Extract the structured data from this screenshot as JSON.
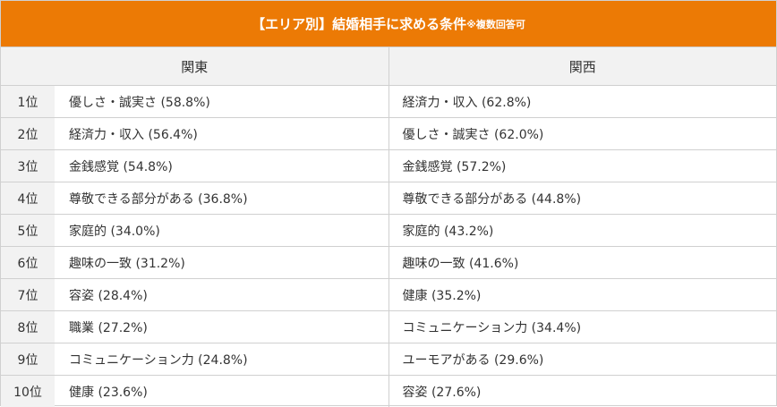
{
  "title": {
    "main": "【エリア別】結婚相手に求める条件",
    "note": "※複数回答可"
  },
  "headers": {
    "kanto": "関東",
    "kansai": "関西"
  },
  "rows": [
    {
      "rank": "1位",
      "kanto": "優しさ・誠実さ (58.8%)",
      "kansai": "経済力・収入 (62.8%)"
    },
    {
      "rank": "2位",
      "kanto": "経済力・収入 (56.4%)",
      "kansai": "優しさ・誠実さ (62.0%)"
    },
    {
      "rank": "3位",
      "kanto": "金銭感覚 (54.8%)",
      "kansai": "金銭感覚 (57.2%)"
    },
    {
      "rank": "4位",
      "kanto": "尊敬できる部分がある (36.8%)",
      "kansai": "尊敬できる部分がある (44.8%)"
    },
    {
      "rank": "5位",
      "kanto": "家庭的 (34.0%)",
      "kansai": "家庭的 (43.2%)"
    },
    {
      "rank": "6位",
      "kanto": "趣味の一致 (31.2%)",
      "kansai": "趣味の一致 (41.6%)"
    },
    {
      "rank": "7位",
      "kanto": "容姿 (28.4%)",
      "kansai": "健康 (35.2%)"
    },
    {
      "rank": "8位",
      "kanto": "職業 (27.2%)",
      "kansai": "コミュニケーション力 (34.4%)"
    },
    {
      "rank": "9位",
      "kanto": "コミュニケーション力 (24.8%)",
      "kansai": "ユーモアがある (29.6%)"
    },
    {
      "rank": "10位",
      "kanto": "健康 (23.6%)",
      "kansai": "容姿 (27.6%)"
    }
  ],
  "colors": {
    "title_background": "#ec7a05",
    "header_background": "#f2f2f2",
    "border": "#d0d0d0"
  }
}
